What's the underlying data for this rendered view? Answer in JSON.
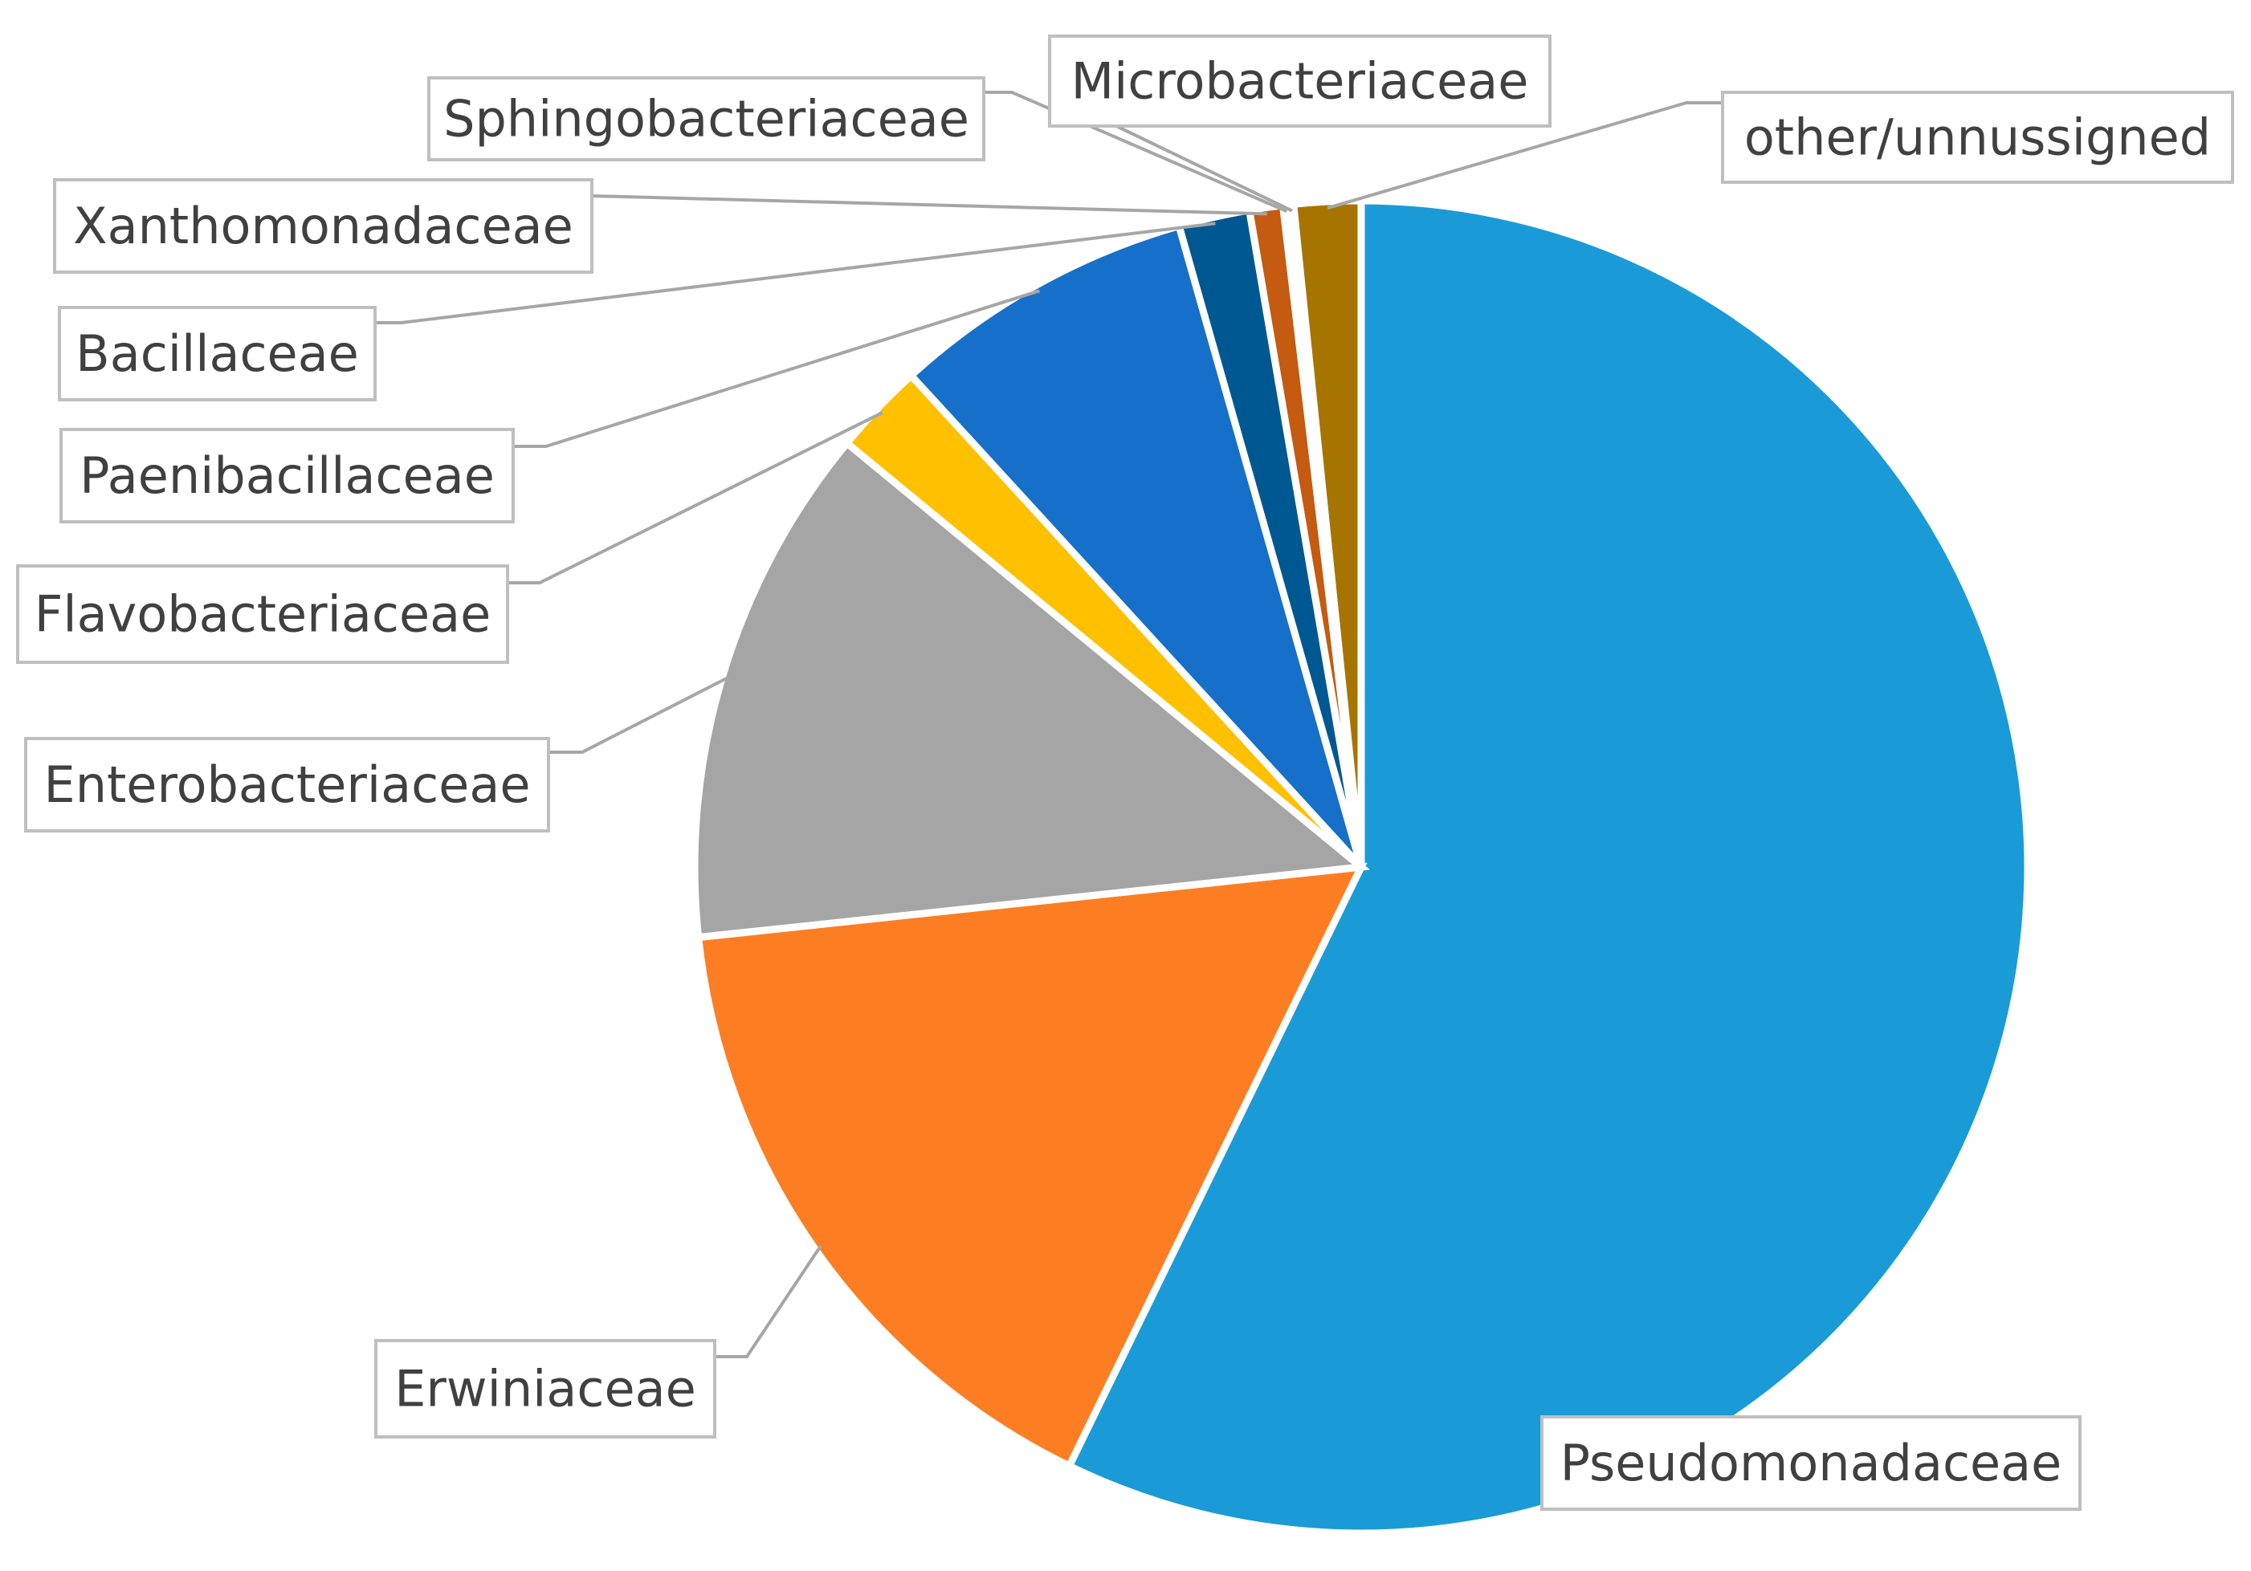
{
  "chart_data": {
    "type": "pie",
    "title": "",
    "start_angle_deg": 0,
    "direction": "clockwise",
    "legend": "none",
    "data_labels": "category-name",
    "slices": [
      {
        "name": "Pseudomonadaceae",
        "value": 56.5,
        "color": "#1a9bd7"
      },
      {
        "name": "Erwiniaceae",
        "value": 15.9,
        "color": "#fd7e22"
      },
      {
        "name": "Enterobacteriaceae",
        "value": 12.5,
        "color": "#a5a5a5"
      },
      {
        "name": "Flavobacteriaceae",
        "value": 2.2,
        "color": "#ffc000"
      },
      {
        "name": "Paenibacillaceae",
        "value": 7.3,
        "color": "#1670c9"
      },
      {
        "name": "Bacillaceae",
        "value": 1.7,
        "color": "#005892"
      },
      {
        "name": "Xanthomonadaceae",
        "value": 0.8,
        "color": "#c55a11"
      },
      {
        "name": "Sphingobacteriaceae",
        "value": 0.15,
        "color": "#1670c9"
      },
      {
        "name": "Microbacteriaceae",
        "value": 0.1,
        "color": "#7f7f7f"
      },
      {
        "name": "other/unnussigned",
        "value": 1.6,
        "color": "#a77400"
      }
    ]
  }
}
